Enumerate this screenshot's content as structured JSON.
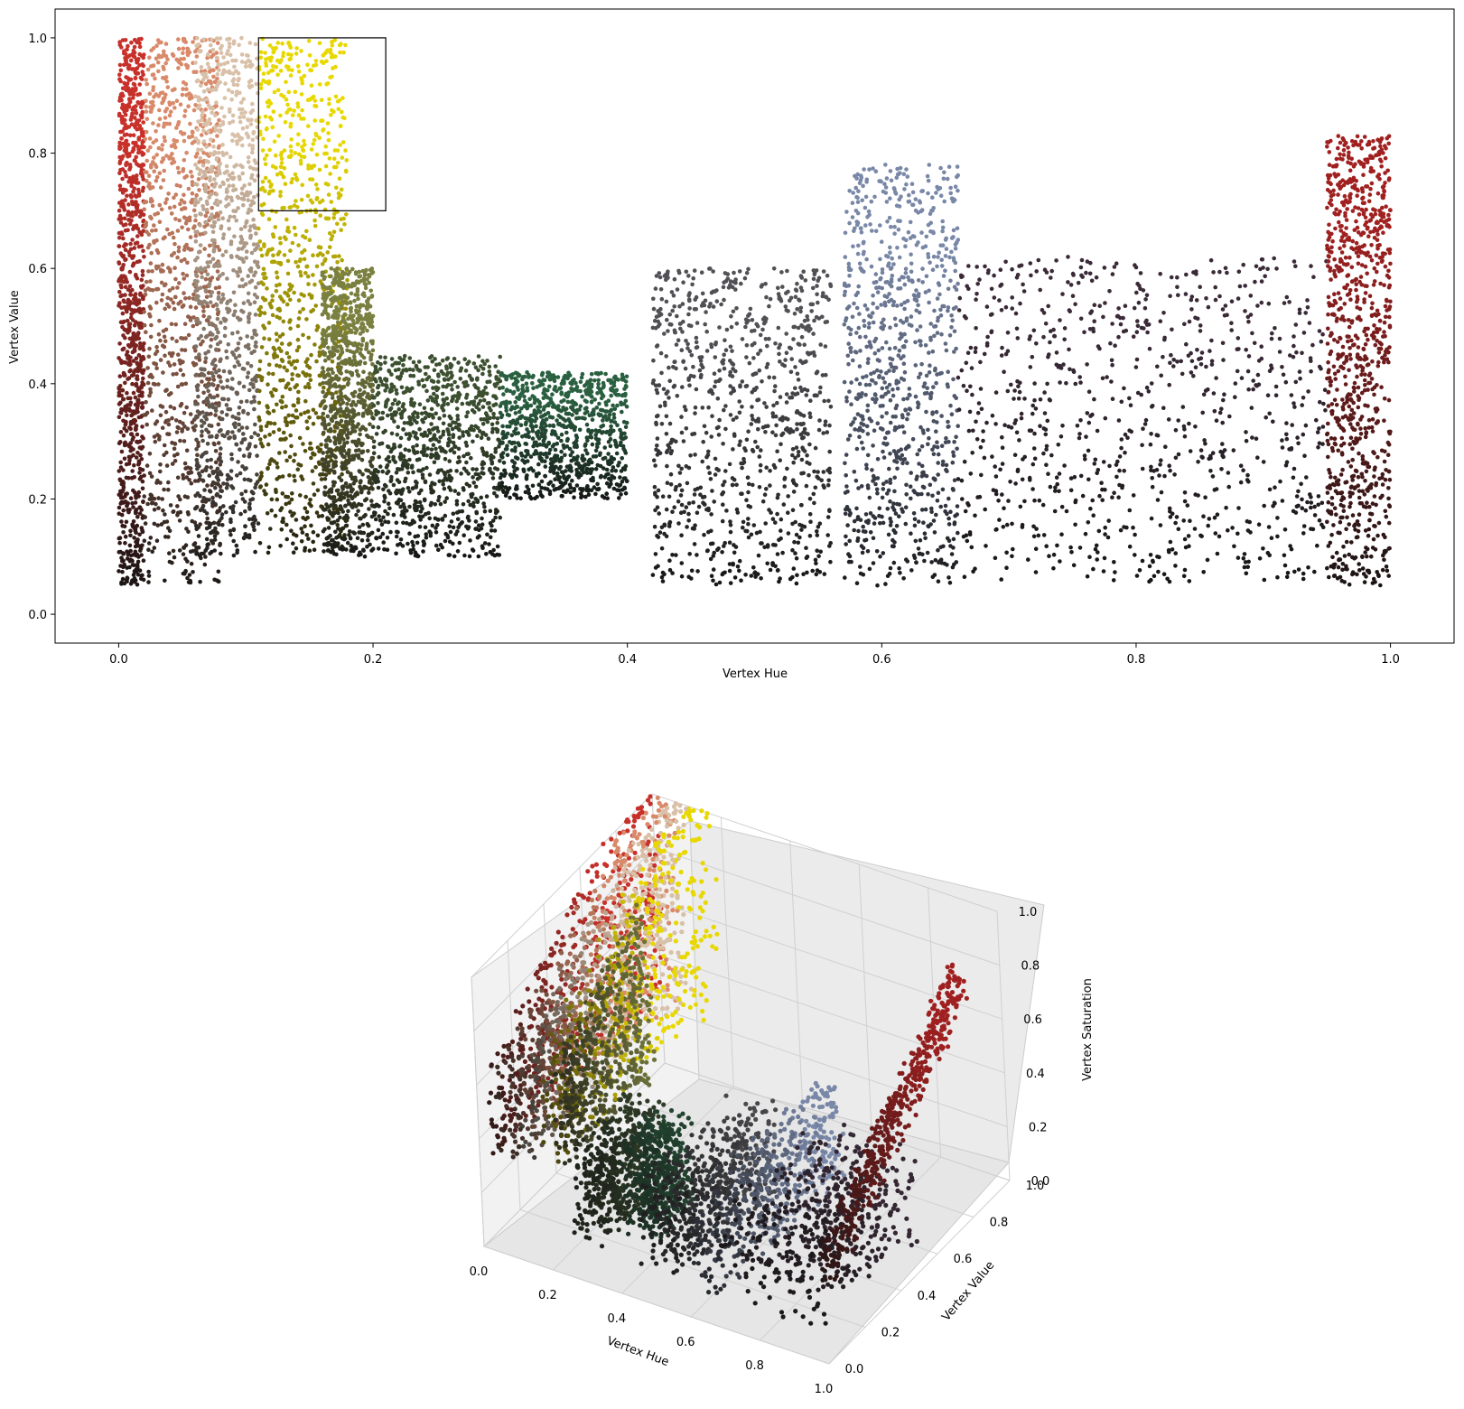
{
  "chart_data": [
    {
      "type": "scatter",
      "xlabel": "Vertex Hue",
      "ylabel": "Vertex Value",
      "xlim": [
        -0.05,
        1.05
      ],
      "ylim": [
        -0.05,
        1.05
      ],
      "xticks": [
        "0.0",
        "0.2",
        "0.4",
        "0.6",
        "0.8",
        "1.0"
      ],
      "yticks": [
        "0.0",
        "0.2",
        "0.4",
        "0.6",
        "0.8",
        "1.0"
      ],
      "grid": false,
      "highlight_rect": {
        "x": [
          0.11,
          0.21
        ],
        "y": [
          0.7,
          1.0
        ]
      },
      "clusters": [
        {
          "hue": [
            0.0,
            0.02
          ],
          "value": [
            0.05,
            1.0
          ],
          "color": "#c8302a"
        },
        {
          "hue": [
            0.02,
            0.08
          ],
          "value": [
            0.05,
            1.0
          ],
          "color": "#d98a6a"
        },
        {
          "hue": [
            0.06,
            0.11
          ],
          "value": [
            0.1,
            1.0
          ],
          "color": "#d9c0a8"
        },
        {
          "hue": [
            0.11,
            0.18
          ],
          "value": [
            0.1,
            1.0
          ],
          "color": "#e8d800"
        },
        {
          "hue": [
            0.16,
            0.2
          ],
          "value": [
            0.1,
            0.6
          ],
          "color": "#7a8040"
        },
        {
          "hue": [
            0.2,
            0.3
          ],
          "value": [
            0.1,
            0.45
          ],
          "color": "#3c5030"
        },
        {
          "hue": [
            0.3,
            0.4
          ],
          "value": [
            0.2,
            0.42
          ],
          "color": "#2a6040"
        },
        {
          "hue": [
            0.42,
            0.56
          ],
          "value": [
            0.05,
            0.6
          ],
          "color": "#505055"
        },
        {
          "hue": [
            0.57,
            0.66
          ],
          "value": [
            0.05,
            0.78
          ],
          "color": "#7a88a8"
        },
        {
          "hue": [
            0.66,
            0.95
          ],
          "value": [
            0.05,
            0.62
          ],
          "color": "#3a2a38"
        },
        {
          "hue": [
            0.95,
            1.0
          ],
          "value": [
            0.05,
            0.83
          ],
          "color": "#a02020"
        }
      ]
    },
    {
      "type": "scatter",
      "projection": "3d",
      "xlabel": "Vertex Hue",
      "ylabel": "Vertex Value",
      "zlabel": "Vertex Saturation",
      "xticks": [
        "0.0",
        "0.2",
        "0.4",
        "0.6",
        "0.8",
        "1.0"
      ],
      "yticks": [
        "0.0",
        "0.2",
        "0.4",
        "0.6",
        "0.8",
        "1.0"
      ],
      "zticks": [
        "0.0",
        "0.2",
        "0.4",
        "0.6",
        "0.8",
        "1.0"
      ],
      "xlim": [
        0,
        1
      ],
      "ylim": [
        0,
        1
      ],
      "zlim": [
        0,
        1
      ],
      "grid": true
    }
  ]
}
